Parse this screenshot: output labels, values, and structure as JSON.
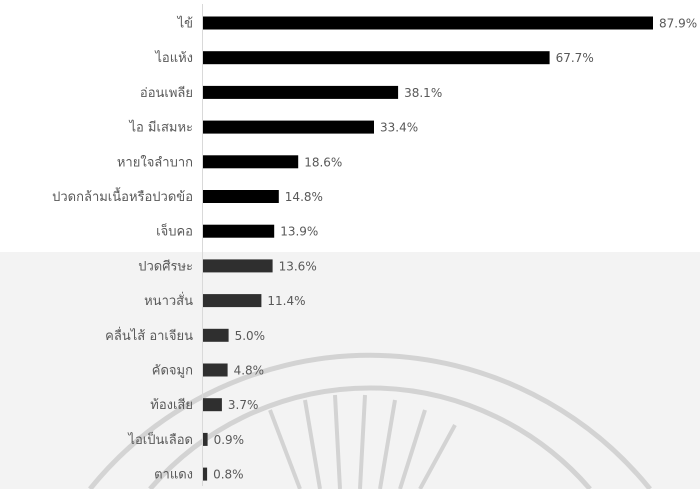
{
  "chart_data": {
    "type": "bar",
    "orientation": "horizontal",
    "categories": [
      "ไข้",
      "ไอแห้ง",
      "อ่อนเพลีย",
      "ไอ มีเสมหะ",
      "หายใจลำบาก",
      "ปวดกล้ามเนื้อหรือปวดข้อ",
      "เจ็บคอ",
      "ปวดศีรษะ",
      "หนาวสั่น",
      "คลื่นไส้ อาเจียน",
      "คัดจมูก",
      "ท้องเสีย",
      "ไอเป็นเลือด",
      "ตาแดง"
    ],
    "values": [
      87.9,
      67.7,
      38.1,
      33.4,
      18.6,
      14.8,
      13.9,
      13.6,
      11.4,
      5.0,
      4.8,
      3.7,
      0.9,
      0.8
    ],
    "value_labels": [
      "87.9%",
      "67.7%",
      "38.1%",
      "33.4%",
      "18.6%",
      "14.8%",
      "13.9%",
      "13.6%",
      "11.4%",
      "5.0%",
      "4.8%",
      "3.7%",
      "0.9%",
      "0.8%"
    ],
    "xlim": [
      0,
      100
    ],
    "grid": false,
    "legend": "none",
    "colors": {
      "bar": "#000000",
      "bar_lower": "#2f2f2f",
      "label": "#595959",
      "baseline": "#d9d9d9",
      "watermark": "#9a9a9a"
    }
  }
}
